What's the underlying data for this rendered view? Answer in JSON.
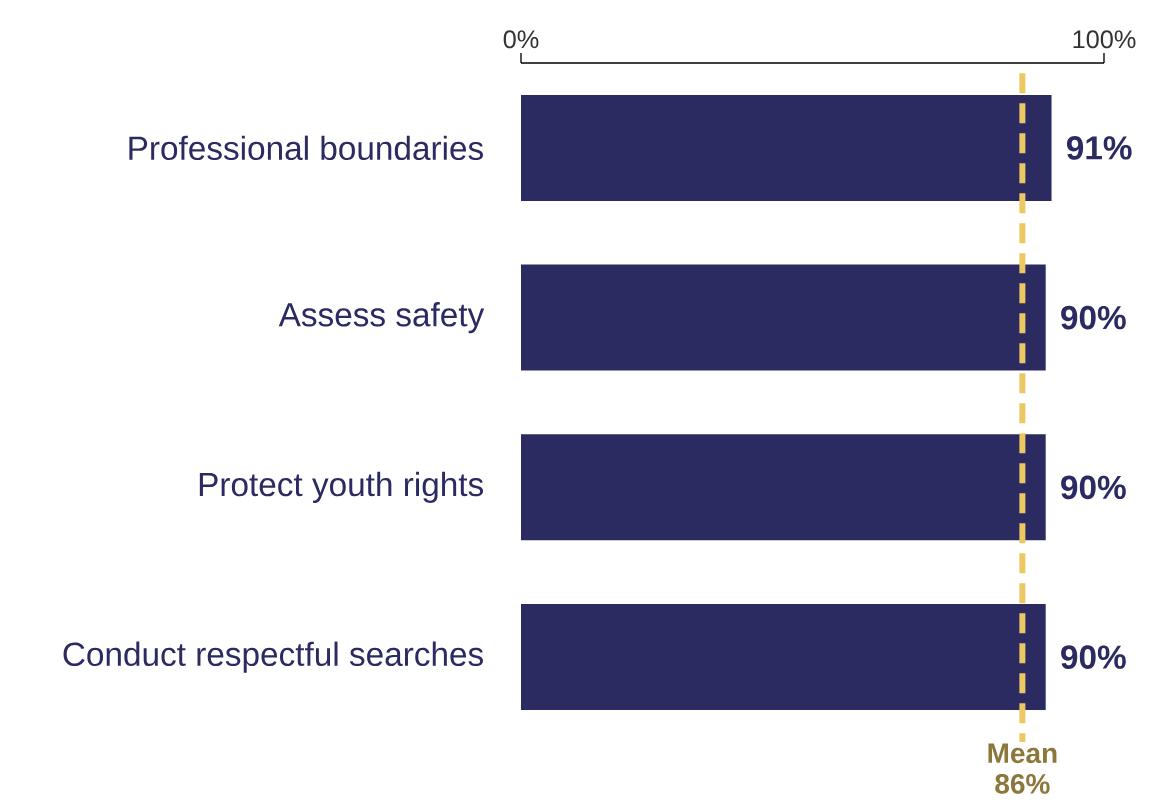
{
  "chart_data": {
    "type": "bar",
    "orientation": "horizontal",
    "color": "#2b2a61",
    "categories": [
      "Professional boundaries",
      "Assess safety",
      "Protect youth rights",
      "Conduct respectful searches"
    ],
    "values": [
      91,
      90,
      90,
      90
    ],
    "value_labels": [
      "91%",
      "90%",
      "90%",
      "90%"
    ],
    "xlim": [
      0,
      100
    ],
    "xticks": [
      {
        "value": 0,
        "label": "0%"
      },
      {
        "value": 100,
        "label": "100%"
      }
    ],
    "ref_lines": [
      {
        "axis": "x",
        "value": 86,
        "label": "Mean 86%",
        "color": "#ebc862",
        "line_style": "dashed"
      }
    ]
  }
}
